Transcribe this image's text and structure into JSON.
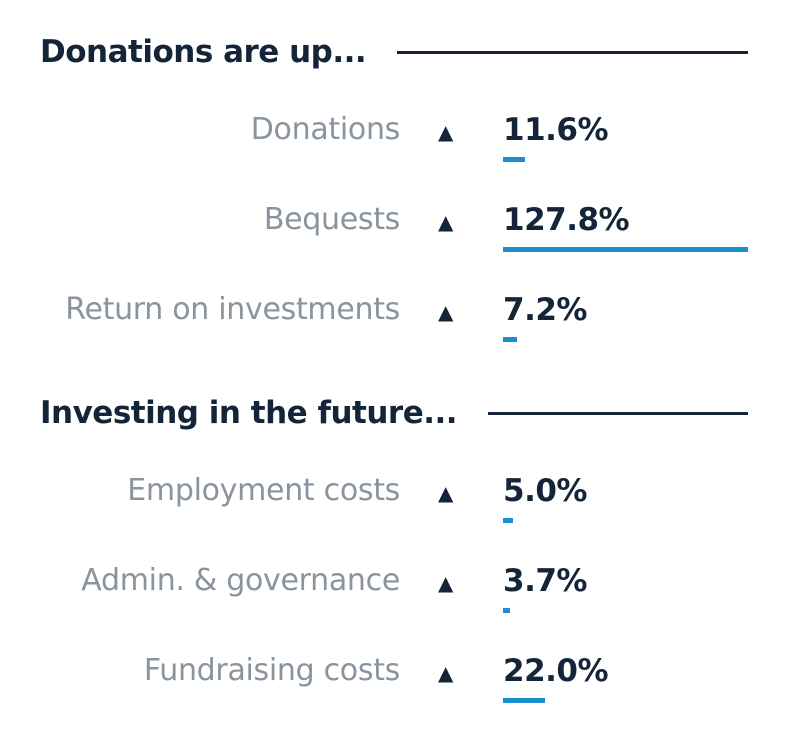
{
  "chart_data": {
    "type": "bar",
    "sections": [
      {
        "title": "Donations are up...",
        "items": [
          {
            "label": "Donations",
            "value": 11.6,
            "display": "11.6%",
            "direction": "up"
          },
          {
            "label": "Bequests",
            "value": 127.8,
            "display": "127.8%",
            "direction": "up"
          },
          {
            "label": "Return on investments",
            "value": 7.2,
            "display": "7.2%",
            "direction": "up"
          }
        ]
      },
      {
        "title": "Investing in the future...",
        "items": [
          {
            "label": "Employment costs",
            "value": 5.0,
            "display": "5.0%",
            "direction": "up"
          },
          {
            "label": "Admin. & governance",
            "value": 3.7,
            "display": "3.7%",
            "direction": "up"
          },
          {
            "label": "Fundraising costs",
            "value": 22.0,
            "display": "22.0%",
            "direction": "up"
          }
        ]
      }
    ],
    "max_value": 127.8,
    "arrow_glyph": "▲",
    "colors": {
      "heading": "#14253a",
      "label": "#8a949e",
      "bar": "#1b8ed0"
    }
  }
}
